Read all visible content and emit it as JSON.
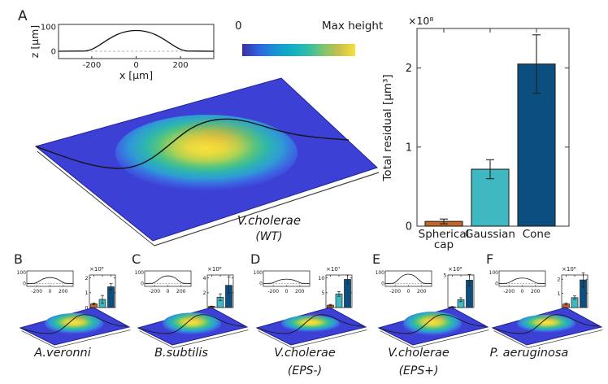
{
  "panel_a": {
    "letter": "A",
    "surface_label1": "V.cholerae",
    "surface_label2": "(WT)",
    "colorbar": {
      "min": "0",
      "max": "Max height"
    },
    "profile": {
      "xlabel": "x [μm]",
      "ylabel": "z [μm]"
    }
  },
  "panels": [
    {
      "letter": "B",
      "label_lines": [
        "A.veronni"
      ]
    },
    {
      "letter": "C",
      "label_lines": [
        "B.subtilis"
      ]
    },
    {
      "letter": "D",
      "label_lines": [
        "V.cholerae",
        "(EPS-)"
      ]
    },
    {
      "letter": "E",
      "label_lines": [
        "V.cholerae",
        "(EPS+)"
      ]
    },
    {
      "letter": "F",
      "label_lines": [
        "P. aeruginosa"
      ]
    }
  ],
  "colors": {
    "surface_plane": "#3D40D5",
    "bar_orange": "#C96428",
    "bar_cyan": "#3FB8C2",
    "bar_dark_blue": "#0B4F81",
    "colorbar_gradient": [
      "#3B2FA3",
      "#2E63E0",
      "#1792D2",
      "#0FAEC6",
      "#2DBCAB",
      "#7CC56F",
      "#C8BF4C",
      "#F8E03B"
    ],
    "dome_gradient": [
      [
        "0",
        "#F6E63D"
      ],
      [
        "0.17",
        "#E9DA3E"
      ],
      [
        "0.32",
        "#AFD254"
      ],
      [
        "0.46",
        "#55C47E"
      ],
      [
        "0.58",
        "#2EB5AE"
      ],
      [
        "0.72",
        "#2F9AD6"
      ],
      [
        "0.86",
        "#3C63E2"
      ],
      [
        "1",
        "#3D40D5"
      ]
    ]
  },
  "chart_data": [
    {
      "panel": "A",
      "organism": "V.cholerae (WT)",
      "residual_bar": {
        "type": "bar",
        "categories": [
          "Spherical cap",
          "Gaussian",
          "Cone"
        ],
        "values": [
          0.06,
          0.72,
          2.05
        ],
        "errors": [
          0.03,
          0.12,
          0.37
        ],
        "scale_label": "×10⁸",
        "unit_exponent": 8,
        "ylabel": "Total residual [μm³]",
        "yticks": [
          0,
          1,
          2
        ],
        "ylim": [
          0,
          2.5
        ],
        "bar_colors": [
          "#C96428",
          "#3FB8C2",
          "#0B4F81"
        ]
      },
      "height_profile": {
        "type": "line",
        "xlabel": "x [μm]",
        "ylabel": "z [μm]",
        "xticks": [
          -200,
          0,
          200
        ],
        "yticks": [
          0,
          100
        ],
        "xlim": [
          -350,
          350
        ],
        "peak_z_um": 85,
        "dome_halfwidth_um": 230
      }
    },
    {
      "panel": "B",
      "organism": "A.veronni",
      "residual_bar": {
        "type": "bar",
        "categories": [
          "Spherical cap",
          "Gaussian",
          "Cone"
        ],
        "values": [
          0.25,
          0.55,
          1.4
        ],
        "errors": [
          0.06,
          0.27,
          0.22
        ],
        "scale_label": "×10⁸",
        "unit_exponent": 8,
        "yticks": [
          0,
          1,
          2
        ],
        "ylim": [
          0,
          2.2
        ]
      },
      "height_profile": {
        "type": "line",
        "xticks": [
          -200,
          0,
          200
        ],
        "yticks": [
          0,
          100
        ],
        "xlim": [
          -350,
          350
        ],
        "peak_z_um": 55,
        "dome_halfwidth_um": 230
      }
    },
    {
      "panel": "C",
      "organism": "B.subtilis",
      "residual_bar": {
        "type": "bar",
        "categories": [
          "Spherical cap",
          "Gaussian",
          "Cone"
        ],
        "values": [
          0.15,
          1.4,
          3.0
        ],
        "errors": [
          0.05,
          0.45,
          1.1
        ],
        "scale_label": "×10⁸",
        "unit_exponent": 8,
        "yticks": [
          2,
          4
        ],
        "ylim": [
          0,
          4.4
        ]
      },
      "height_profile": {
        "type": "line",
        "xticks": [
          -200,
          0,
          200
        ],
        "yticks": [
          0,
          100
        ],
        "xlim": [
          -350,
          350
        ],
        "peak_z_um": 70,
        "dome_halfwidth_um": 230
      }
    },
    {
      "panel": "D",
      "organism": "V.cholerae (EPS-)",
      "residual_bar": {
        "type": "bar",
        "categories": [
          "Spherical cap",
          "Gaussian",
          "Cone"
        ],
        "values": [
          0.8,
          4.6,
          9.5
        ],
        "errors": [
          0.25,
          0.8,
          1.5
        ],
        "scale_label": "×10⁷",
        "unit_exponent": 7,
        "yticks": [
          5,
          10
        ],
        "ylim": [
          0,
          11
        ]
      },
      "height_profile": {
        "type": "line",
        "xticks": [
          -200,
          0,
          200
        ],
        "yticks": [
          0,
          100
        ],
        "xlim": [
          -350,
          350
        ],
        "peak_z_um": 40,
        "dome_halfwidth_um": 230
      }
    },
    {
      "panel": "E",
      "organism": "V.cholerae (EPS+)",
      "residual_bar": {
        "type": "bar",
        "categories": [
          "Spherical cap",
          "Gaussian",
          "Cone"
        ],
        "values": [
          0.1,
          1.2,
          4.2
        ],
        "errors": [
          0.05,
          0.3,
          0.9
        ],
        "scale_label": "×10⁸",
        "unit_exponent": 8,
        "yticks": [
          5
        ],
        "ylim": [
          0,
          5
        ]
      },
      "height_profile": {
        "type": "line",
        "xticks": [
          -200,
          0,
          200
        ],
        "yticks": [
          0,
          100
        ],
        "xlim": [
          -350,
          350
        ],
        "peak_z_um": 85,
        "dome_halfwidth_um": 230
      }
    },
    {
      "panel": "F",
      "organism": "P. aeruginosa",
      "residual_bar": {
        "type": "bar",
        "categories": [
          "Spherical cap",
          "Gaussian",
          "Cone"
        ],
        "values": [
          0.25,
          0.7,
          1.95
        ],
        "errors": [
          0.07,
          0.12,
          0.5
        ],
        "scale_label": "×10⁸",
        "unit_exponent": 8,
        "yticks": [
          1,
          2
        ],
        "ylim": [
          0,
          2.3
        ]
      },
      "height_profile": {
        "type": "line",
        "xticks": [
          -200,
          0,
          200
        ],
        "yticks": [
          0,
          100
        ],
        "xlim": [
          -350,
          350
        ],
        "peak_z_um": 50,
        "dome_halfwidth_um": 230
      }
    }
  ]
}
